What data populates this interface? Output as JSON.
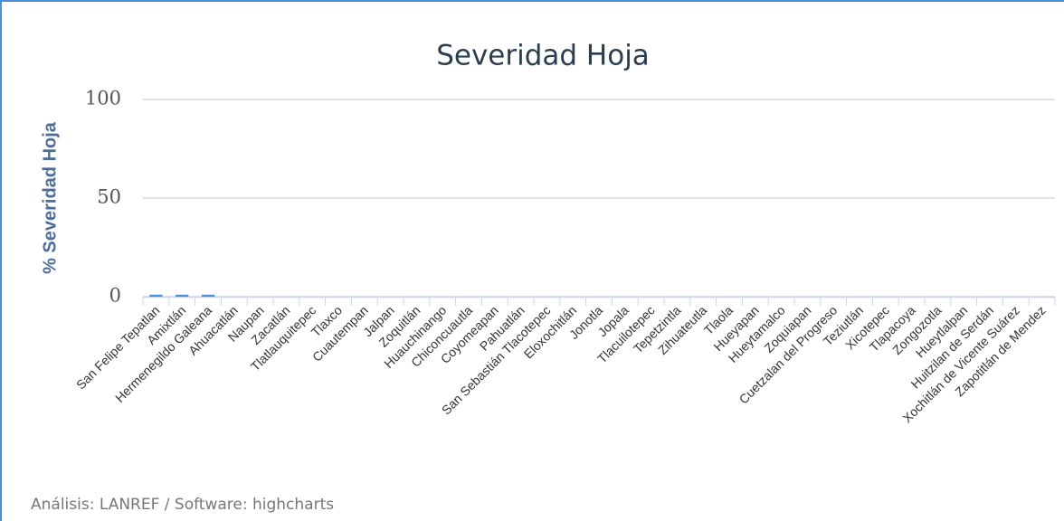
{
  "chart_data": {
    "type": "bar",
    "title": "Severidad Hoja",
    "y_label": "% Severidad Hoja",
    "credits": "Análisis: LANREF / Software: highcharts",
    "categories": [
      "San Felipe Tepatlan",
      "Amixtlán",
      "Hermenegildo Galeana",
      "Ahuacatlán",
      "Naupan",
      "Zacatlán",
      "Tlatlauquitepec",
      "Tlaxco",
      "Cuautempan",
      "Jalpan",
      "Zoquitlán",
      "Huauchinango",
      "Chiconcuautla",
      "Coyomeapan",
      "Pahuatlán",
      "San Sebastián Tlacotepec",
      "Eloxochitlán",
      "Jonotla",
      "Jopala",
      "Tlacuilotepec",
      "Tepetzintla",
      "Zihuateutla",
      "Tlaola",
      "Hueyapan",
      "Hueytamalco",
      "Zoquiapan",
      "Cuetzalan del Progreso",
      "Teziutlán",
      "Xicotepec",
      "Tlapacoya",
      "Zongozotla",
      "Hueytlalpan",
      "Huitzilan de Serdán",
      "Xochitlán de Vicente Suárez",
      "Zapotitlán de Mendez"
    ],
    "values": [
      1,
      1,
      1,
      0,
      0,
      0,
      0,
      0,
      0,
      0,
      0,
      0,
      0,
      0,
      0,
      0,
      0,
      0,
      0,
      0,
      0,
      0,
      0,
      0,
      0,
      0,
      0,
      0,
      0,
      0,
      0,
      0,
      0,
      0,
      0
    ],
    "color": "#4a90d9",
    "ylim": [
      0,
      100
    ],
    "yticks": [
      0,
      50,
      100
    ],
    "grid": true
  }
}
